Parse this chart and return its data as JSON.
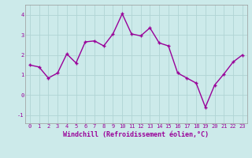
{
  "x": [
    0,
    1,
    2,
    3,
    4,
    5,
    6,
    7,
    8,
    9,
    10,
    11,
    12,
    13,
    14,
    15,
    16,
    17,
    18,
    19,
    20,
    21,
    22,
    23
  ],
  "y": [
    1.5,
    1.4,
    0.85,
    1.1,
    2.05,
    1.6,
    2.65,
    2.7,
    2.45,
    3.05,
    4.05,
    3.05,
    2.95,
    3.35,
    2.6,
    2.45,
    1.1,
    0.85,
    0.6,
    -0.6,
    0.5,
    1.05,
    1.65,
    2.0
  ],
  "line_color": "#990099",
  "marker": "+",
  "marker_size": 3,
  "background_color": "#cceaea",
  "grid_color": "#b0d4d4",
  "xlabel": "Windchill (Refroidissement éolien,°C)",
  "xlabel_color": "#990099",
  "tick_color": "#990099",
  "xlim": [
    -0.5,
    23.5
  ],
  "ylim": [
    -1.4,
    4.5
  ],
  "yticks": [
    -1,
    0,
    1,
    2,
    3,
    4
  ],
  "xticks": [
    0,
    1,
    2,
    3,
    4,
    5,
    6,
    7,
    8,
    9,
    10,
    11,
    12,
    13,
    14,
    15,
    16,
    17,
    18,
    19,
    20,
    21,
    22,
    23
  ],
  "line_width": 1.0,
  "marker_color": "#990099",
  "tick_fontsize": 5.0,
  "xlabel_fontsize": 6.0
}
